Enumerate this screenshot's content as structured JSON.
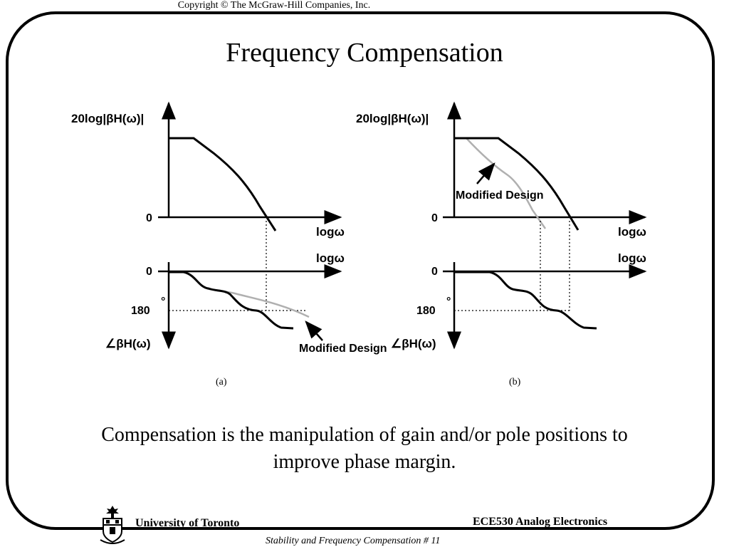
{
  "copyright": "Copyright © The McGraw-Hill Companies, Inc.",
  "title": "Frequency Compensation",
  "panels": [
    {
      "label": "(a)",
      "mag_axis_label": "20log|βH(ω)|",
      "mag_zero": "0",
      "mag_x_label": "logω",
      "phase_x_label": "logω",
      "phase_zero": "0",
      "phase_180": "180",
      "degree_mark": "°",
      "phase_axis_label": "∠βH(ω)",
      "annotation": "Modified Design"
    },
    {
      "label": "(b)",
      "mag_axis_label": "20log|βH(ω)|",
      "mag_zero": "0",
      "mag_x_label": "logω",
      "phase_x_label": "logω",
      "phase_zero": "0",
      "phase_180": "180",
      "degree_mark": "°",
      "phase_axis_label": "∠βH(ω)",
      "annotation": "Modified Design"
    }
  ],
  "caption": "Compensation is the manipulation of gain and/or pole positions to improve phase margin.",
  "footer": {
    "university": "University of Toronto",
    "course": "ECE530 Analog Electronics",
    "subtitle": "Stability and Frequency Compensation # 11"
  }
}
